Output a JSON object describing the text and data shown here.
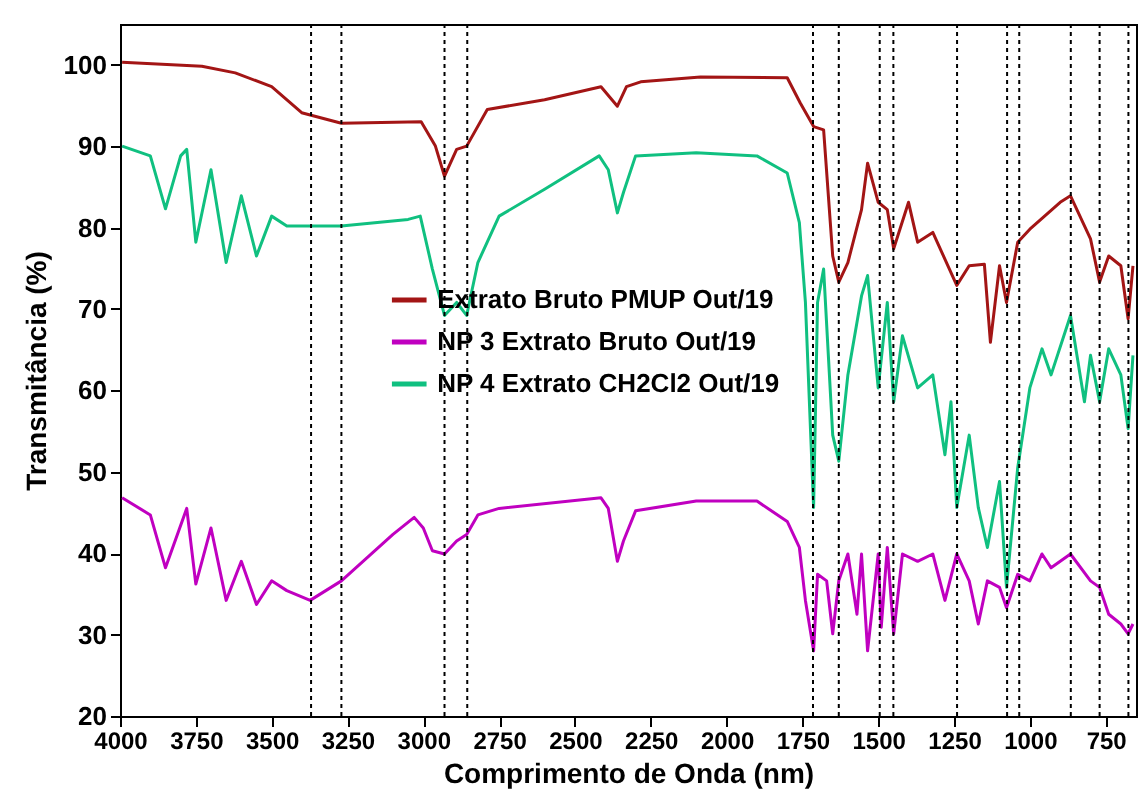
{
  "chart_data": {
    "type": "line",
    "xlabel": "Comprimento de Onda (nm)",
    "ylabel": "Transmitância (%)",
    "xlim": [
      4000,
      650
    ],
    "ylim": [
      20,
      105
    ],
    "xticks": [
      4000,
      3750,
      3500,
      3250,
      3000,
      2750,
      2500,
      2250,
      2000,
      1750,
      1500,
      1250,
      1000,
      750
    ],
    "yticks": [
      20,
      30,
      40,
      50,
      60,
      70,
      80,
      90,
      100
    ],
    "grid": false,
    "legend": "center",
    "line_style": "solid",
    "marker": "none",
    "series": [
      {
        "name": "Extrato Bruto PMUP Out/19",
        "color": "#a31515",
        "x": [
          3993,
          3730,
          3620,
          3500,
          3401,
          3270,
          3007,
          2960,
          2930,
          2890,
          2857,
          2789,
          2600,
          2414,
          2360,
          2330,
          2283,
          2086,
          1800,
          1757,
          1713,
          1680,
          1650,
          1630,
          1600,
          1555,
          1535,
          1500,
          1470,
          1449,
          1400,
          1370,
          1320,
          1241,
          1200,
          1150,
          1130,
          1100,
          1077,
          1040,
          1000,
          900,
          866,
          800,
          770,
          740,
          700,
          676,
          660
        ],
        "values": [
          100.3,
          99.8,
          99.0,
          97.3,
          94.1,
          92.8,
          93.0,
          90.0,
          86.3,
          89.6,
          90.0,
          94.5,
          95.7,
          97.3,
          94.9,
          97.3,
          97.9,
          98.5,
          98.4,
          95.3,
          92.4,
          92.0,
          76.5,
          73.3,
          75.7,
          82.2,
          87.9,
          83.1,
          82.2,
          77.4,
          83.1,
          78.2,
          79.4,
          72.9,
          75.3,
          75.5,
          65.9,
          75.3,
          70.8,
          78.2,
          79.8,
          83.1,
          83.9,
          78.6,
          73.3,
          76.5,
          75.3,
          68.8,
          75.3
        ]
      },
      {
        "name": "NP 3 Extrato Bruto Out/19",
        "color": "#c000c0",
        "x": [
          3993,
          3900,
          3850,
          3780,
          3750,
          3700,
          3650,
          3600,
          3550,
          3500,
          3450,
          3373,
          3270,
          3100,
          3030,
          3000,
          2970,
          2930,
          2890,
          2857,
          2820,
          2750,
          2414,
          2390,
          2360,
          2340,
          2300,
          2100,
          1900,
          1800,
          1760,
          1740,
          1713,
          1700,
          1670,
          1650,
          1630,
          1600,
          1570,
          1555,
          1535,
          1500,
          1490,
          1470,
          1449,
          1420,
          1370,
          1320,
          1280,
          1241,
          1200,
          1170,
          1140,
          1100,
          1077,
          1040,
          1000,
          960,
          930,
          866,
          800,
          770,
          740,
          700,
          676,
          660
        ],
        "values": [
          46.8,
          44.7,
          38.2,
          45.5,
          36.2,
          43.1,
          34.2,
          39.0,
          33.7,
          36.6,
          35.4,
          34.2,
          36.6,
          42.3,
          44.4,
          43.1,
          40.3,
          39.9,
          41.5,
          42.3,
          44.7,
          45.5,
          46.8,
          45.5,
          39.0,
          41.5,
          45.2,
          46.4,
          46.4,
          43.9,
          40.7,
          34.2,
          28.0,
          37.4,
          36.6,
          30.1,
          36.6,
          39.9,
          32.5,
          39.9,
          28.0,
          39.9,
          30.9,
          40.7,
          30.1,
          39.9,
          39.0,
          39.9,
          34.2,
          39.9,
          36.6,
          31.3,
          36.6,
          35.8,
          33.3,
          37.4,
          36.6,
          39.9,
          38.2,
          39.9,
          36.6,
          35.8,
          32.5,
          31.3,
          30.1,
          31.3
        ]
      },
      {
        "name": "NP 4 Extrato CH2Cl2 Out/19",
        "color": "#10c080",
        "x": [
          3993,
          3900,
          3850,
          3800,
          3780,
          3750,
          3700,
          3650,
          3600,
          3550,
          3500,
          3450,
          3400,
          3270,
          3050,
          3010,
          2970,
          2930,
          2890,
          2857,
          2820,
          2750,
          2600,
          2420,
          2390,
          2360,
          2340,
          2300,
          2100,
          1900,
          1800,
          1760,
          1740,
          1713,
          1700,
          1680,
          1650,
          1630,
          1600,
          1555,
          1535,
          1500,
          1470,
          1449,
          1420,
          1370,
          1320,
          1280,
          1260,
          1241,
          1200,
          1170,
          1140,
          1100,
          1077,
          1040,
          1000,
          960,
          930,
          866,
          820,
          800,
          770,
          740,
          700,
          676,
          660
        ],
        "values": [
          90.0,
          88.8,
          82.3,
          88.8,
          89.6,
          78.2,
          87.1,
          75.7,
          83.9,
          76.5,
          81.4,
          80.2,
          80.2,
          80.2,
          81.0,
          81.4,
          74.9,
          69.2,
          70.8,
          69.2,
          75.7,
          81.4,
          84.7,
          88.8,
          87.1,
          81.8,
          84.3,
          88.8,
          89.2,
          88.8,
          86.7,
          80.6,
          70.8,
          45.6,
          70.8,
          74.9,
          54.5,
          51.3,
          61.9,
          71.6,
          74.1,
          60.3,
          70.8,
          58.6,
          66.7,
          60.3,
          61.9,
          52.1,
          58.6,
          45.6,
          54.5,
          45.6,
          40.7,
          48.8,
          35.8,
          50.5,
          60.3,
          65.1,
          61.9,
          69.2,
          58.6,
          64.3,
          58.6,
          65.1,
          61.9,
          55.3,
          64.3
        ]
      }
    ],
    "ref_lines": [
      {
        "axis": "x",
        "value": 3370,
        "color": "#000000",
        "line_style": "dotted"
      },
      {
        "axis": "x",
        "value": 3270,
        "color": "#000000",
        "line_style": "dotted"
      },
      {
        "axis": "x",
        "value": 2930,
        "color": "#000000",
        "line_style": "dotted"
      },
      {
        "axis": "x",
        "value": 2855,
        "color": "#000000",
        "line_style": "dotted"
      },
      {
        "axis": "x",
        "value": 1715,
        "color": "#000000",
        "line_style": "dotted"
      },
      {
        "axis": "x",
        "value": 1630,
        "color": "#000000",
        "line_style": "dotted"
      },
      {
        "axis": "x",
        "value": 1495,
        "color": "#000000",
        "line_style": "dotted"
      },
      {
        "axis": "x",
        "value": 1450,
        "color": "#000000",
        "line_style": "dotted"
      },
      {
        "axis": "x",
        "value": 1240,
        "color": "#000000",
        "line_style": "dotted"
      },
      {
        "axis": "x",
        "value": 1075,
        "color": "#000000",
        "line_style": "dotted"
      },
      {
        "axis": "x",
        "value": 1035,
        "color": "#000000",
        "line_style": "dotted"
      },
      {
        "axis": "x",
        "value": 865,
        "color": "#000000",
        "line_style": "dotted"
      },
      {
        "axis": "x",
        "value": 770,
        "color": "#000000",
        "line_style": "dotted"
      },
      {
        "axis": "x",
        "value": 675,
        "color": "#000000",
        "line_style": "dotted"
      }
    ]
  }
}
